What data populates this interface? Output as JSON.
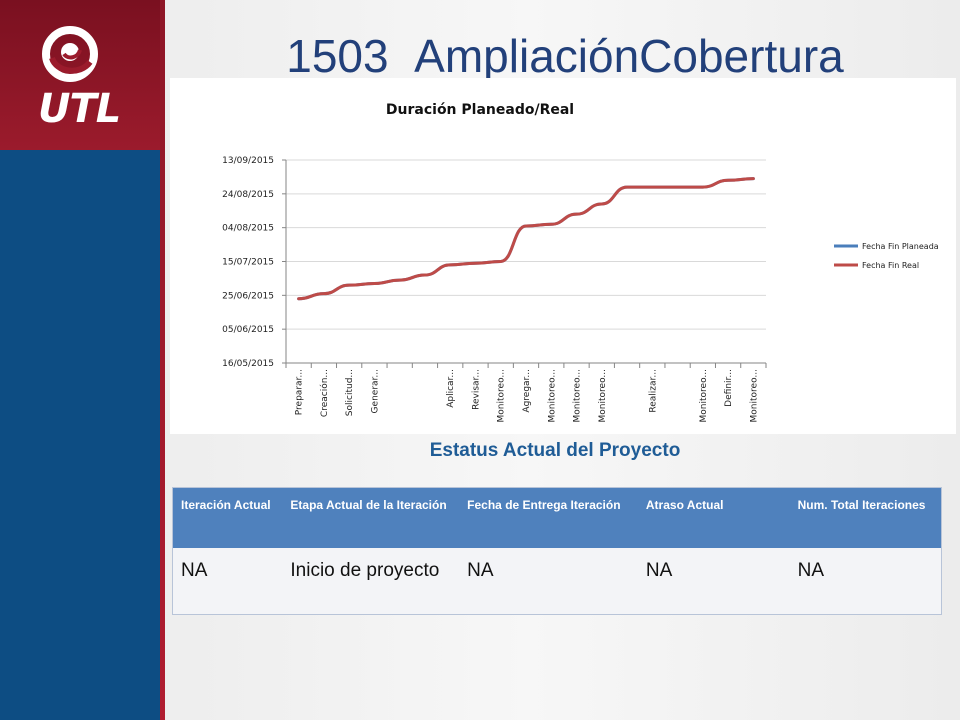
{
  "slide": {
    "title": "1503_AmpliaciónCobertura",
    "logo_text": "UTL"
  },
  "colors": {
    "sidebar_blue": "#0d4d83",
    "sidebar_red": "#9b1b2c",
    "title_blue": "#22407a",
    "subtitle_blue": "#1f5c96",
    "table_header": "#4f81bd",
    "series_planned": "#4a7ebb",
    "series_real": "#be4b48"
  },
  "chart_data": {
    "type": "line",
    "title": "Duración Planeado/Real",
    "xlabel": "",
    "ylabel": "",
    "y_axis_type": "date",
    "ylim": [
      "2015-05-16",
      "2015-09-13"
    ],
    "y_ticks": [
      "16/05/2015",
      "05/06/2015",
      "25/06/2015",
      "15/07/2015",
      "04/08/2015",
      "24/08/2015",
      "13/09/2015"
    ],
    "x_tick_labels": [
      "Preparar...",
      "Creación...",
      "Solicitud...",
      "Generar...",
      "Aplicar...",
      "Revisar...",
      "Monitoreo...",
      "Agregar...",
      "Monitoreo...",
      "Monitoreo...",
      "Monitoreo...",
      "Realizar...",
      "Monitoreo...",
      "Definir...",
      "Monitoreo..."
    ],
    "x_tick_positions": [
      1,
      2,
      3,
      4,
      7,
      8,
      9,
      10,
      11,
      12,
      13,
      15,
      17,
      18,
      19
    ],
    "x_count": 19,
    "legend_position": "right",
    "grid": "horizontal",
    "series": [
      {
        "name": "Fecha Fin Planeada",
        "color": "#4a7ebb",
        "values": [
          "2015-06-23",
          "2015-06-26",
          "2015-07-01",
          "2015-07-02",
          "2015-07-04",
          "2015-07-07",
          "2015-07-13",
          "2015-07-14",
          "2015-07-15",
          "2015-08-05",
          "2015-08-06",
          "2015-08-12",
          "2015-08-18",
          "2015-08-28",
          "2015-08-28",
          "2015-08-28",
          "2015-08-28",
          "2015-09-01",
          "2015-09-02"
        ]
      },
      {
        "name": "Fecha Fin Real",
        "color": "#be4b48",
        "values": [
          "2015-06-23",
          "2015-06-26",
          "2015-07-01",
          "2015-07-02",
          "2015-07-04",
          "2015-07-07",
          "2015-07-13",
          "2015-07-14",
          "2015-07-15",
          "2015-08-05",
          "2015-08-06",
          "2015-08-12",
          "2015-08-18",
          "2015-08-28",
          "2015-08-28",
          "2015-08-28",
          "2015-08-28",
          "2015-09-01",
          "2015-09-02"
        ]
      }
    ]
  },
  "status": {
    "title": "Estatus Actual del Proyecto",
    "headers": [
      "Iteración Actual",
      "Etapa Actual de la Iteración",
      "Fecha de Entrega Iteración",
      "Atraso Actual",
      "Num. Total Iteraciones"
    ],
    "row": [
      "NA",
      "Inicio de proyecto",
      "NA",
      "NA",
      "NA"
    ]
  }
}
